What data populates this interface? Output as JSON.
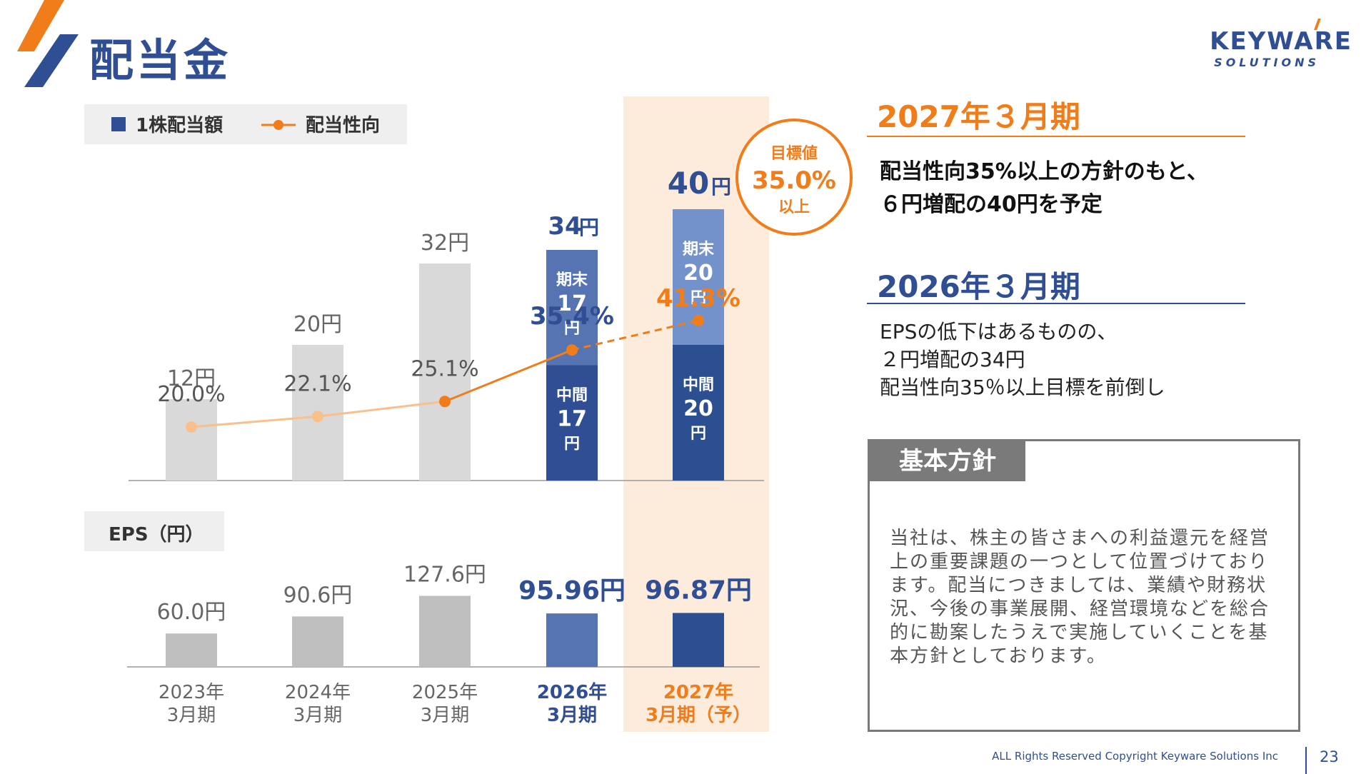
{
  "header": {
    "title": "配当金",
    "brand_name": "KEYWARE",
    "brand_sub": "SOLUTIONS"
  },
  "legend": {
    "bar_label": "1株配当額",
    "line_label": "配当性向"
  },
  "target_badge": {
    "label": "目標値",
    "value": "35.0%",
    "suffix": "以上"
  },
  "eps_label": "EPS（円）",
  "fy2027": {
    "heading": "2027年３月期",
    "line1": "配当性向35%以上の方針のもと、",
    "line2": "６円増配の40円を予定"
  },
  "fy2026": {
    "heading": "2026年３月期",
    "line1": "EPSの低下はあるものの、",
    "line2": "２円増配の34円",
    "line3": "配当性向35％以上目標を前倒し"
  },
  "policy": {
    "title": "基本方針",
    "body": "当社は、株主の皆さまへの利益還元を経営上の重要課題の一つとして位置づけております。配当につきましては、業績や財務状況、今後の事業展開、経営環境などを総合的に勘案したうえで実施していくことを基本方針としております。"
  },
  "footer": {
    "copyright": "ALL Rights Reserved Copyright Keyware Solutions Inc",
    "page": "23"
  },
  "colors": {
    "navy": "#2f4e93",
    "dark_navy": "#2b4f90",
    "mid_blue": "#5574b1",
    "light_blue": "#7392cc",
    "gray_bar": "#d9d9d9",
    "eps_gray": "#bfbfbf",
    "orange": "#f07d1a",
    "light_orange": "#f9c08c",
    "highlight": "#fdebdc"
  },
  "chart_data": [
    {
      "type": "bar",
      "title": "",
      "categories": [
        "2023年\n3月期",
        "2024年\n3月期",
        "2025年\n3月期",
        "2026年\n3月期",
        "2027年\n3月期（予）"
      ],
      "series": [
        {
          "name": "1株配当額",
          "values": [
            12,
            20,
            32,
            34,
            40
          ],
          "labels": [
            "12円",
            "20円",
            "32円",
            "34円",
            "40円"
          ]
        },
        {
          "values": [
            null,
            null,
            null,
            17,
            20
          ],
          "label_top": "中間",
          "labels": [
            "",
            "",
            "",
            "17",
            "20"
          ]
        },
        {
          "values": [
            null,
            null,
            null,
            17,
            20
          ],
          "label_top": "期末",
          "labels": [
            "",
            "",
            "",
            "17",
            "20"
          ]
        },
        {
          "name": "配当性向",
          "type": "line",
          "values": [
            20.0,
            22.1,
            25.1,
            35.4,
            41.3
          ],
          "labels": [
            "20.0%",
            "22.1%",
            "25.1%",
            "35.4%",
            "41.3%"
          ],
          "forecast_from": 3
        }
      ],
      "unit_char": "円",
      "ylim": [
        0,
        45
      ]
    },
    {
      "type": "bar",
      "title": "EPS（円）",
      "categories": [
        "2023年\n3月期",
        "2024年\n3月期",
        "2025年\n3月期",
        "2026年\n3月期",
        "2027年\n3月期（予）"
      ],
      "values": [
        60.0,
        90.6,
        127.6,
        95.96,
        96.87
      ],
      "labels": [
        "60.0円",
        "90.6円",
        "127.6円",
        "95.96円",
        "96.87円"
      ],
      "ylim": [
        0,
        140
      ]
    }
  ]
}
